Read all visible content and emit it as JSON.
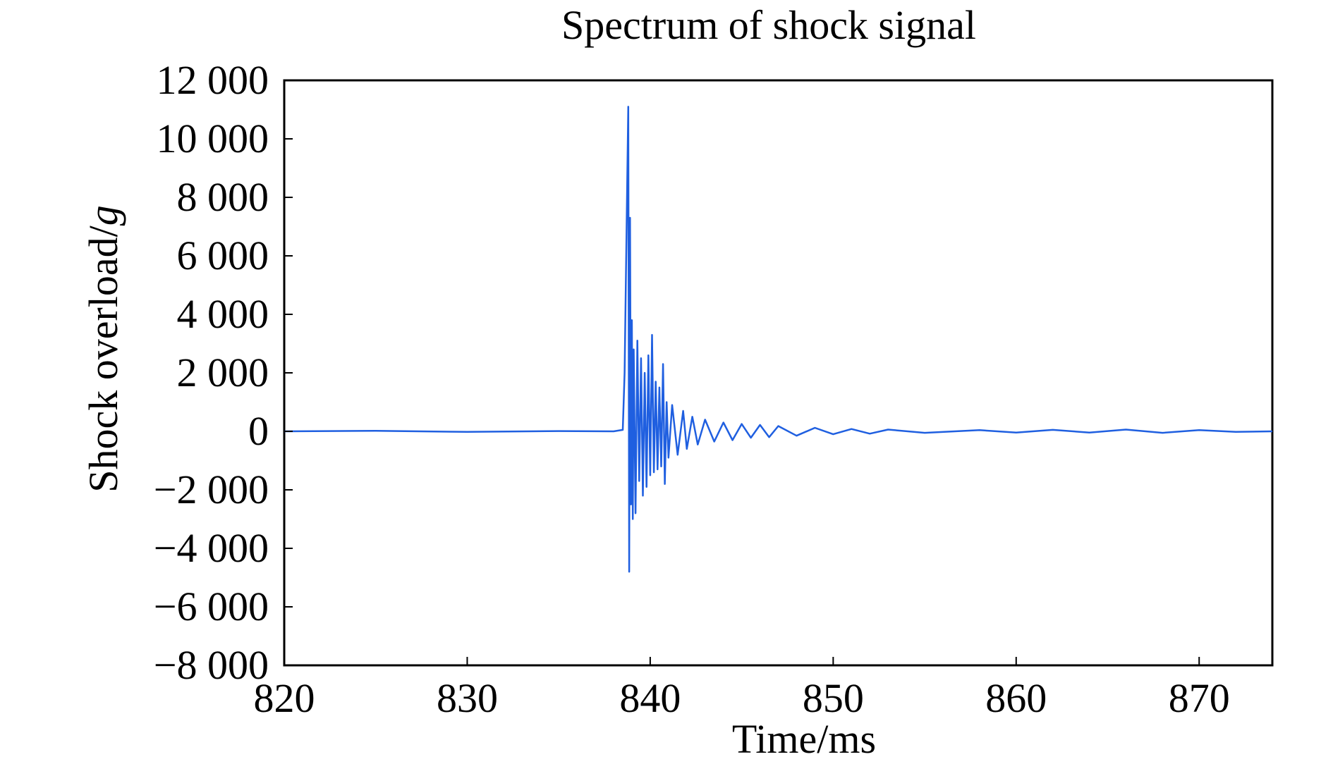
{
  "chart_data": {
    "type": "line",
    "title": "Spectrum of shock signal",
    "xlabel": "Time/ms",
    "ylabel_main": "Shock overload/",
    "ylabel_unit": "g",
    "xlim": [
      820,
      874
    ],
    "ylim": [
      -8000,
      12000
    ],
    "x_ticks": [
      820,
      830,
      840,
      850,
      860,
      870
    ],
    "x_tick_labels": [
      "820",
      "830",
      "840",
      "850",
      "860",
      "870"
    ],
    "y_ticks": [
      12000,
      10000,
      8000,
      6000,
      4000,
      2000,
      0,
      -2000,
      -4000,
      -6000,
      -8000
    ],
    "y_tick_labels": [
      "12 000",
      "10 000",
      "8 000",
      "6 000",
      "4 000",
      "2 000",
      "0",
      "−2 000",
      "−4 000",
      "−6 000",
      "−8 000"
    ],
    "grid": false,
    "line_color": "#1f5fe0",
    "series": [
      {
        "x": [
          820,
          825,
          830,
          835,
          838.0,
          838.5,
          838.6,
          838.8,
          838.85,
          838.9,
          838.95,
          839.0,
          839.05,
          839.1,
          839.2,
          839.3,
          839.4,
          839.5,
          839.6,
          839.7,
          839.8,
          839.9,
          840.0,
          840.1,
          840.2,
          840.3,
          840.4,
          840.5,
          840.6,
          840.7,
          840.8,
          840.9,
          841.0,
          841.2,
          841.5,
          841.8,
          842.0,
          842.3,
          842.6,
          843.0,
          843.5,
          844.0,
          844.5,
          845.0,
          845.5,
          846.0,
          846.5,
          847.0,
          848.0,
          849.0,
          850.0,
          851.0,
          852.0,
          853.0,
          855.0,
          858.0,
          860.0,
          862.0,
          864.0,
          866.0,
          868.0,
          870.0,
          872.0,
          874.0
        ],
        "y": [
          0,
          20,
          -20,
          10,
          0,
          50,
          2000,
          11100,
          -4800,
          7300,
          -2500,
          3800,
          -3000,
          2800,
          -2800,
          3100,
          -1700,
          2500,
          -2200,
          2000,
          -1900,
          2600,
          -1500,
          3300,
          -1400,
          1700,
          -1300,
          1500,
          -1200,
          2300,
          -1800,
          1000,
          -900,
          900,
          -800,
          700,
          -600,
          500,
          -450,
          400,
          -350,
          300,
          -300,
          250,
          -220,
          220,
          -200,
          180,
          -150,
          120,
          -100,
          80,
          -80,
          60,
          -50,
          40,
          -40,
          50,
          -40,
          60,
          -50,
          40,
          -20,
          0
        ]
      }
    ]
  }
}
